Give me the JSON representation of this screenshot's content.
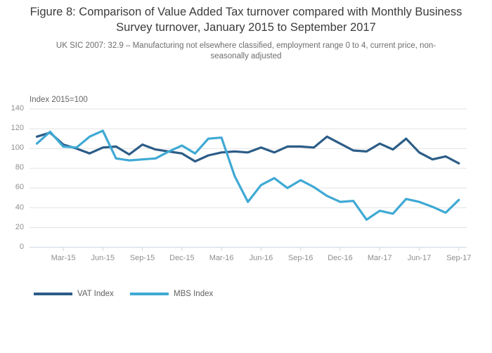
{
  "figure": {
    "title": "Figure 8: Comparison of Value Added Tax turnover compared with Monthly Business Survey turnover, January 2015 to September 2017",
    "subtitle": "UK SIC 2007: 32.9 – Manufacturing not elsewhere classified, employment range 0 to 4, current price, non-seasonally adjusted"
  },
  "chart_data": {
    "type": "line",
    "axis_title": "Index 2015=100",
    "ylim": [
      0,
      140
    ],
    "y_ticks": [
      140,
      120,
      100,
      80,
      60,
      40,
      20,
      0
    ],
    "grid": true,
    "legend_position": "bottom",
    "x": [
      "Jan-15",
      "Feb-15",
      "Mar-15",
      "Apr-15",
      "May-15",
      "Jun-15",
      "Jul-15",
      "Aug-15",
      "Sep-15",
      "Oct-15",
      "Nov-15",
      "Dec-15",
      "Jan-16",
      "Feb-16",
      "Mar-16",
      "Apr-16",
      "May-16",
      "Jun-16",
      "Jul-16",
      "Aug-16",
      "Sep-16",
      "Oct-16",
      "Nov-16",
      "Dec-16",
      "Jan-17",
      "Feb-17",
      "Mar-17",
      "Apr-17",
      "May-17",
      "Jun-17",
      "Jul-17",
      "Aug-17",
      "Sep-17"
    ],
    "x_tick_labels": [
      "Mar-15",
      "Jun-15",
      "Sep-15",
      "Dec-15",
      "Mar-16",
      "Jun-16",
      "Sep-16",
      "Dec-16",
      "Mar-17",
      "Jun-17",
      "Sep-17"
    ],
    "series": [
      {
        "name": "VAT Index",
        "color": "#2c5d87",
        "values": [
          112,
          116,
          104,
          100,
          95,
          101,
          102,
          94,
          104,
          99,
          97,
          95,
          87,
          93,
          96,
          97,
          96,
          101,
          96,
          102,
          102,
          101,
          112,
          105,
          98,
          97,
          105,
          99,
          110,
          96,
          89,
          92,
          85
        ]
      },
      {
        "name": "MBS Index",
        "color": "#3fa9d4",
        "values": [
          105,
          117,
          102,
          101,
          112,
          118,
          90,
          88,
          89,
          90,
          97,
          103,
          95,
          110,
          111,
          72,
          46,
          63,
          70,
          60,
          68,
          61,
          52,
          46,
          47,
          28,
          37,
          34,
          49,
          46,
          41,
          35,
          48
        ]
      }
    ],
    "colors": {
      "gridline": "#e3e3e3",
      "axis_line": "#c9d6de",
      "tick_label": "#8f8f8f"
    }
  }
}
